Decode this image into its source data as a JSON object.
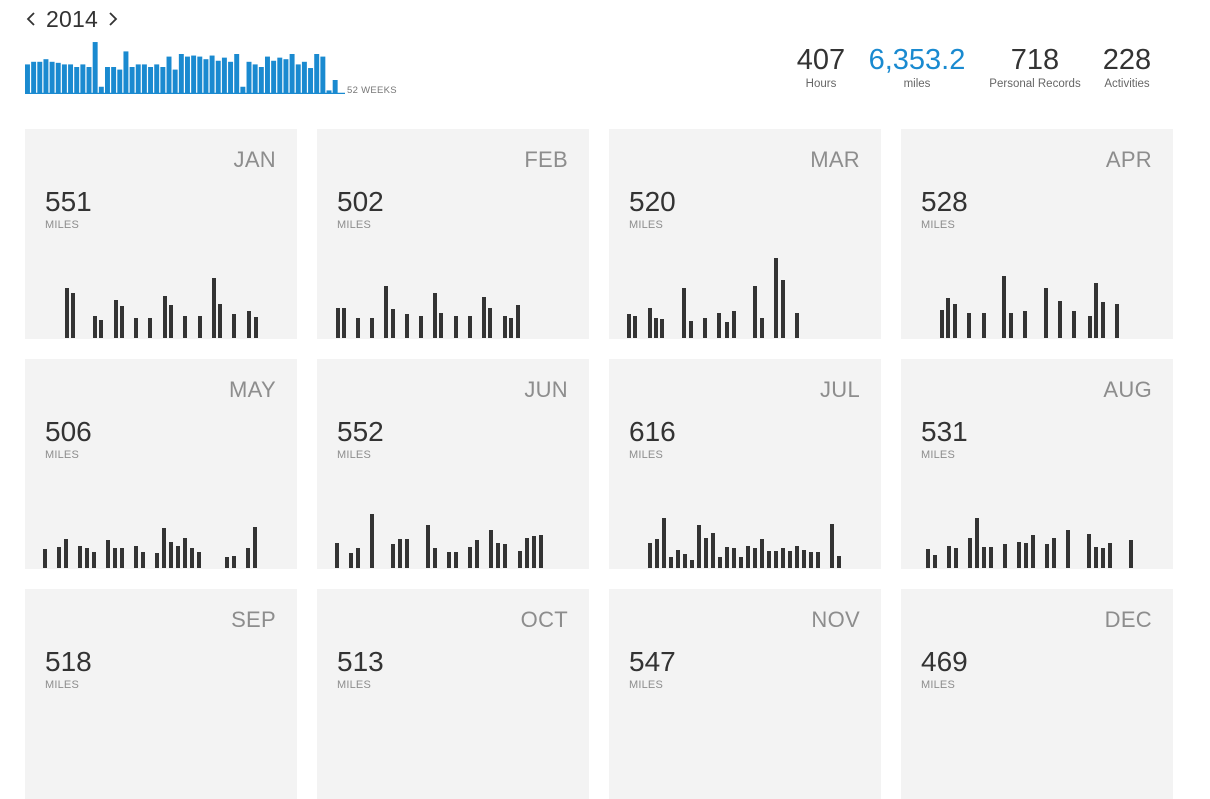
{
  "year_nav": {
    "year": "2014",
    "prev_icon": "chevron-left-icon",
    "next_icon": "chevron-right-icon"
  },
  "weekly_chart_caption": "52 WEEKS",
  "colors": {
    "accent": "#1a8ad0",
    "bar": "#333333",
    "card_bg": "#f3f3f3"
  },
  "stats": [
    {
      "value": "407",
      "label": "Hours",
      "accent": false
    },
    {
      "value": "6,353.2",
      "label": "miles",
      "accent": true
    },
    {
      "value": "718",
      "label": "Personal Records",
      "accent": false
    },
    {
      "value": "228",
      "label": "Activities",
      "accent": false
    }
  ],
  "chart_data": [
    {
      "type": "bar",
      "xlabel": "52 WEEKS",
      "ylim": [
        0,
        1
      ],
      "values": [
        0.55,
        0.6,
        0.6,
        0.65,
        0.6,
        0.58,
        0.55,
        0.55,
        0.5,
        0.55,
        0.5,
        0.98,
        0.12,
        0.5,
        0.5,
        0.45,
        0.8,
        0.5,
        0.55,
        0.55,
        0.5,
        0.55,
        0.5,
        0.7,
        0.45,
        0.75,
        0.7,
        0.72,
        0.7,
        0.65,
        0.72,
        0.62,
        0.68,
        0.6,
        0.75,
        0.12,
        0.6,
        0.55,
        0.5,
        0.7,
        0.62,
        0.68,
        0.65,
        0.75,
        0.55,
        0.6,
        0.48,
        0.75,
        0.7,
        0.05,
        0.25,
        0
      ]
    }
  ],
  "months": [
    {
      "name": "JAN",
      "miles": "551",
      "unit": "MILES",
      "activity_bars": [
        {
          "x": 67,
          "h": 50
        },
        {
          "x": 73,
          "h": 45
        },
        {
          "x": 95,
          "h": 22
        },
        {
          "x": 101,
          "h": 18
        },
        {
          "x": 116,
          "h": 38
        },
        {
          "x": 122,
          "h": 32
        },
        {
          "x": 136,
          "h": 20
        },
        {
          "x": 150,
          "h": 20
        },
        {
          "x": 165,
          "h": 42
        },
        {
          "x": 171,
          "h": 33
        },
        {
          "x": 185,
          "h": 22
        },
        {
          "x": 200,
          "h": 22
        },
        {
          "x": 214,
          "h": 60
        },
        {
          "x": 220,
          "h": 34
        },
        {
          "x": 234,
          "h": 24
        },
        {
          "x": 249,
          "h": 27
        },
        {
          "x": 256,
          "h": 21
        }
      ]
    },
    {
      "name": "FEB",
      "miles": "502",
      "unit": "MILES",
      "activity_bars": [
        {
          "x": 338,
          "h": 30
        },
        {
          "x": 344,
          "h": 30
        },
        {
          "x": 358,
          "h": 20
        },
        {
          "x": 372,
          "h": 20
        },
        {
          "x": 386,
          "h": 52
        },
        {
          "x": 393,
          "h": 29
        },
        {
          "x": 407,
          "h": 24
        },
        {
          "x": 421,
          "h": 22
        },
        {
          "x": 435,
          "h": 45
        },
        {
          "x": 441,
          "h": 25
        },
        {
          "x": 456,
          "h": 22
        },
        {
          "x": 470,
          "h": 22
        },
        {
          "x": 484,
          "h": 41
        },
        {
          "x": 490,
          "h": 30
        },
        {
          "x": 505,
          "h": 22
        },
        {
          "x": 511,
          "h": 20
        },
        {
          "x": 518,
          "h": 33
        }
      ]
    },
    {
      "name": "MAR",
      "miles": "520",
      "unit": "MILES",
      "activity_bars": [
        {
          "x": 629,
          "h": 24
        },
        {
          "x": 635,
          "h": 22
        },
        {
          "x": 650,
          "h": 30
        },
        {
          "x": 656,
          "h": 20
        },
        {
          "x": 662,
          "h": 19
        },
        {
          "x": 684,
          "h": 50
        },
        {
          "x": 691,
          "h": 17
        },
        {
          "x": 705,
          "h": 20
        },
        {
          "x": 719,
          "h": 25
        },
        {
          "x": 727,
          "h": 16
        },
        {
          "x": 734,
          "h": 27
        },
        {
          "x": 755,
          "h": 52
        },
        {
          "x": 762,
          "h": 20
        },
        {
          "x": 776,
          "h": 80
        },
        {
          "x": 783,
          "h": 58
        },
        {
          "x": 797,
          "h": 25
        }
      ]
    },
    {
      "name": "APR",
      "miles": "528",
      "unit": "MILES",
      "activity_bars": [
        {
          "x": 942,
          "h": 28
        },
        {
          "x": 948,
          "h": 40
        },
        {
          "x": 955,
          "h": 34
        },
        {
          "x": 969,
          "h": 25
        },
        {
          "x": 984,
          "h": 25
        },
        {
          "x": 1004,
          "h": 62
        },
        {
          "x": 1011,
          "h": 25
        },
        {
          "x": 1025,
          "h": 27
        },
        {
          "x": 1046,
          "h": 50
        },
        {
          "x": 1060,
          "h": 37
        },
        {
          "x": 1074,
          "h": 27
        },
        {
          "x": 1090,
          "h": 22
        },
        {
          "x": 1096,
          "h": 55
        },
        {
          "x": 1103,
          "h": 36
        },
        {
          "x": 1117,
          "h": 34
        }
      ]
    },
    {
      "name": "MAY",
      "miles": "506",
      "unit": "MILES",
      "activity_bars": [
        {
          "x": 45,
          "h": 19
        },
        {
          "x": 59,
          "h": 21
        },
        {
          "x": 66,
          "h": 29
        },
        {
          "x": 80,
          "h": 22
        },
        {
          "x": 87,
          "h": 20
        },
        {
          "x": 94,
          "h": 16
        },
        {
          "x": 108,
          "h": 28
        },
        {
          "x": 115,
          "h": 20
        },
        {
          "x": 122,
          "h": 20
        },
        {
          "x": 136,
          "h": 22
        },
        {
          "x": 143,
          "h": 16
        },
        {
          "x": 157,
          "h": 15
        },
        {
          "x": 164,
          "h": 40
        },
        {
          "x": 171,
          "h": 26
        },
        {
          "x": 178,
          "h": 22
        },
        {
          "x": 185,
          "h": 30
        },
        {
          "x": 192,
          "h": 20
        },
        {
          "x": 199,
          "h": 16
        },
        {
          "x": 227,
          "h": 11
        },
        {
          "x": 234,
          "h": 12
        },
        {
          "x": 248,
          "h": 20
        },
        {
          "x": 255,
          "h": 41
        }
      ]
    },
    {
      "name": "JUN",
      "miles": "552",
      "unit": "MILES",
      "activity_bars": [
        {
          "x": 337,
          "h": 25
        },
        {
          "x": 351,
          "h": 15
        },
        {
          "x": 358,
          "h": 20
        },
        {
          "x": 372,
          "h": 54
        },
        {
          "x": 393,
          "h": 24
        },
        {
          "x": 400,
          "h": 29
        },
        {
          "x": 407,
          "h": 29
        },
        {
          "x": 428,
          "h": 43
        },
        {
          "x": 435,
          "h": 20
        },
        {
          "x": 449,
          "h": 16
        },
        {
          "x": 456,
          "h": 16
        },
        {
          "x": 470,
          "h": 21
        },
        {
          "x": 477,
          "h": 28
        },
        {
          "x": 491,
          "h": 38
        },
        {
          "x": 498,
          "h": 25
        },
        {
          "x": 505,
          "h": 24
        },
        {
          "x": 520,
          "h": 17
        },
        {
          "x": 527,
          "h": 30
        },
        {
          "x": 534,
          "h": 32
        },
        {
          "x": 541,
          "h": 33
        }
      ]
    },
    {
      "name": "JUL",
      "miles": "616",
      "unit": "MILES",
      "activity_bars": [
        {
          "x": 650,
          "h": 25
        },
        {
          "x": 657,
          "h": 29
        },
        {
          "x": 664,
          "h": 50
        },
        {
          "x": 671,
          "h": 11
        },
        {
          "x": 678,
          "h": 18
        },
        {
          "x": 685,
          "h": 14
        },
        {
          "x": 692,
          "h": 8
        },
        {
          "x": 699,
          "h": 43
        },
        {
          "x": 706,
          "h": 30
        },
        {
          "x": 713,
          "h": 35
        },
        {
          "x": 720,
          "h": 11
        },
        {
          "x": 727,
          "h": 21
        },
        {
          "x": 734,
          "h": 20
        },
        {
          "x": 741,
          "h": 11
        },
        {
          "x": 748,
          "h": 22
        },
        {
          "x": 755,
          "h": 20
        },
        {
          "x": 762,
          "h": 29
        },
        {
          "x": 769,
          "h": 17
        },
        {
          "x": 776,
          "h": 17
        },
        {
          "x": 783,
          "h": 20
        },
        {
          "x": 790,
          "h": 17
        },
        {
          "x": 797,
          "h": 22
        },
        {
          "x": 804,
          "h": 18
        },
        {
          "x": 811,
          "h": 16
        },
        {
          "x": 818,
          "h": 16
        },
        {
          "x": 832,
          "h": 44
        },
        {
          "x": 839,
          "h": 12
        }
      ]
    },
    {
      "name": "AUG",
      "miles": "531",
      "unit": "MILES",
      "activity_bars": [
        {
          "x": 928,
          "h": 19
        },
        {
          "x": 935,
          "h": 13
        },
        {
          "x": 949,
          "h": 22
        },
        {
          "x": 956,
          "h": 20
        },
        {
          "x": 970,
          "h": 30
        },
        {
          "x": 977,
          "h": 50
        },
        {
          "x": 984,
          "h": 21
        },
        {
          "x": 991,
          "h": 21
        },
        {
          "x": 1005,
          "h": 24
        },
        {
          "x": 1019,
          "h": 26
        },
        {
          "x": 1026,
          "h": 25
        },
        {
          "x": 1033,
          "h": 33
        },
        {
          "x": 1047,
          "h": 24
        },
        {
          "x": 1054,
          "h": 30
        },
        {
          "x": 1068,
          "h": 38
        },
        {
          "x": 1089,
          "h": 34
        },
        {
          "x": 1096,
          "h": 21
        },
        {
          "x": 1103,
          "h": 20
        },
        {
          "x": 1110,
          "h": 25
        },
        {
          "x": 1131,
          "h": 28
        }
      ]
    },
    {
      "name": "SEP",
      "miles": "518",
      "unit": "MILES",
      "activity_bars": []
    },
    {
      "name": "OCT",
      "miles": "513",
      "unit": "MILES",
      "activity_bars": []
    },
    {
      "name": "NOV",
      "miles": "547",
      "unit": "MILES",
      "activity_bars": []
    },
    {
      "name": "DEC",
      "miles": "469",
      "unit": "MILES",
      "activity_bars": []
    }
  ]
}
